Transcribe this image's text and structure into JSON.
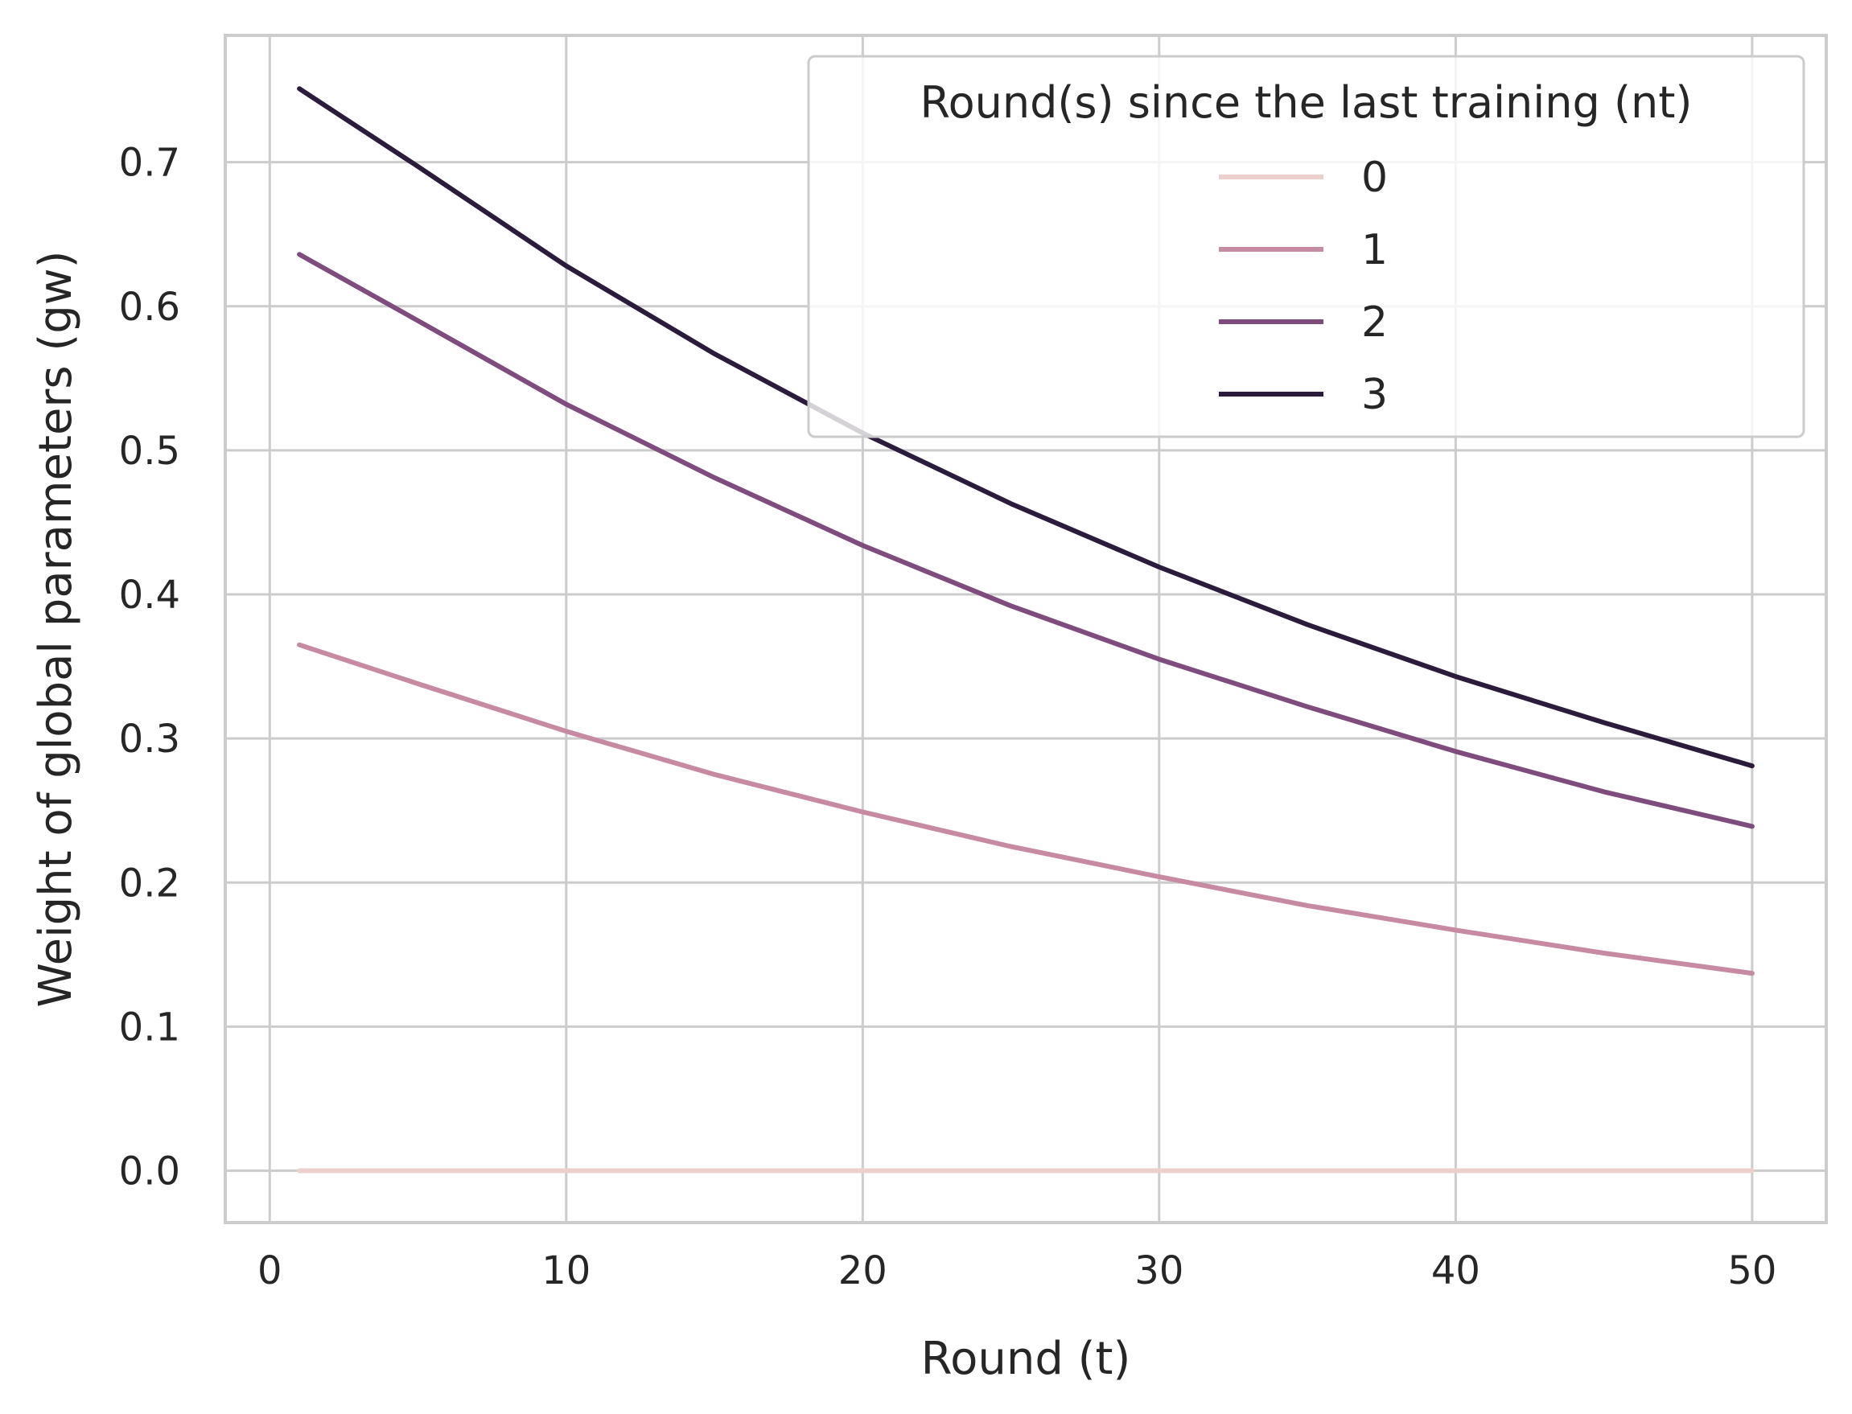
{
  "chart_data": {
    "type": "line",
    "title": "",
    "xlabel": "Round (t)",
    "ylabel": "Weight of global parameters (gw)",
    "xlim": [
      -1.5,
      52.5
    ],
    "ylim": [
      -0.036,
      0.788
    ],
    "xticks": [
      0,
      10,
      20,
      30,
      40,
      50
    ],
    "yticks": [
      0.0,
      0.1,
      0.2,
      0.3,
      0.4,
      0.5,
      0.6,
      0.7
    ],
    "grid": true,
    "legend": {
      "title": "Round(s) since the last training (nt)",
      "position": "top-right"
    },
    "x": [
      1,
      5,
      10,
      15,
      20,
      25,
      30,
      35,
      40,
      45,
      50
    ],
    "series": [
      {
        "name": "0",
        "color": "#ebd0cd",
        "values": [
          0,
          0,
          0,
          0,
          0,
          0,
          0,
          0,
          0,
          0,
          0
        ]
      },
      {
        "name": "1",
        "color": "#c68aa2",
        "values": [
          0.365,
          0.338,
          0.305,
          0.275,
          0.249,
          0.225,
          0.204,
          0.184,
          0.167,
          0.151,
          0.137
        ]
      },
      {
        "name": "2",
        "color": "#7e4c7d",
        "values": [
          0.636,
          0.59,
          0.532,
          0.481,
          0.434,
          0.392,
          0.355,
          0.322,
          0.291,
          0.263,
          0.239
        ]
      },
      {
        "name": "3",
        "color": "#2b1c3b",
        "values": [
          0.751,
          0.697,
          0.628,
          0.567,
          0.512,
          0.463,
          0.419,
          0.379,
          0.343,
          0.311,
          0.281
        ]
      }
    ]
  }
}
